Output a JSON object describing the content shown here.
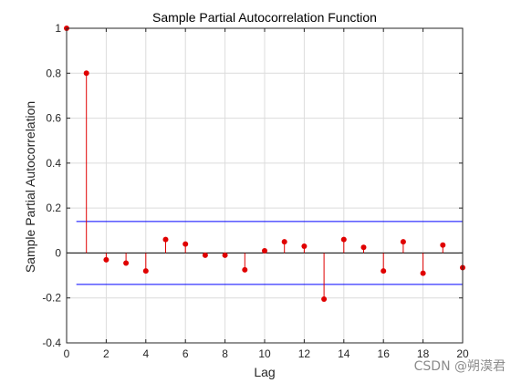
{
  "chart_data": {
    "type": "stem",
    "title": "Sample Partial Autocorrelation Function",
    "xlabel": "Lag",
    "ylabel": "Sample Partial Autocorrelation",
    "xlim": [
      0,
      20
    ],
    "ylim": [
      -0.4,
      1
    ],
    "xticks": [
      0,
      2,
      4,
      6,
      8,
      10,
      12,
      14,
      16,
      18,
      20
    ],
    "yticks": [
      -0.4,
      -0.2,
      0,
      0.2,
      0.4,
      0.6,
      0.8,
      1
    ],
    "grid": true,
    "lags": [
      0,
      1,
      2,
      3,
      4,
      5,
      6,
      7,
      8,
      9,
      10,
      11,
      12,
      13,
      14,
      15,
      16,
      17,
      18,
      19,
      20
    ],
    "values": [
      1,
      0.8,
      -0.03,
      -0.045,
      -0.08,
      0.06,
      0.04,
      -0.01,
      -0.01,
      -0.075,
      0.01,
      0.05,
      0.03,
      -0.205,
      0.06,
      0.025,
      -0.08,
      0.05,
      -0.09,
      0.035,
      -0.065
    ],
    "confidence_bound": 0.14,
    "colors": {
      "stem": "#e00000",
      "bounds": "#0000ff",
      "zero_line": "#000000",
      "grid": "#dcdcdc",
      "axes": "#262626"
    }
  },
  "watermark": "CSDN @朔漠君"
}
